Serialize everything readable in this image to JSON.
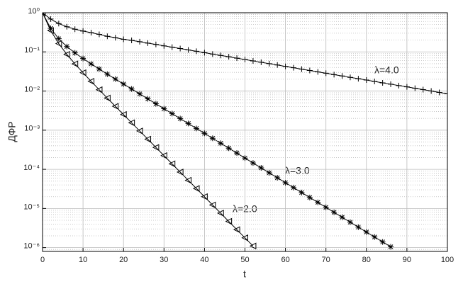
{
  "chart_data": {
    "type": "line",
    "xlabel": "t",
    "ylabel": "ДФР",
    "log_y": true,
    "grid": true,
    "xlim": [
      0,
      100
    ],
    "xticks": [
      0,
      10,
      20,
      30,
      40,
      50,
      60,
      70,
      80,
      90,
      100
    ],
    "ylim": [
      8e-07,
      1
    ],
    "yticks": [
      {
        "value": 1,
        "label": "10⁰"
      },
      {
        "value": 0.1,
        "label": "10⁻¹"
      },
      {
        "value": 0.01,
        "label": "10⁻²"
      },
      {
        "value": 0.001,
        "label": "10⁻³"
      },
      {
        "value": 0.0001,
        "label": "10⁻⁴"
      },
      {
        "value": 1e-05,
        "label": "10⁻⁵"
      },
      {
        "value": 1e-06,
        "label": "10⁻⁶"
      }
    ],
    "series": [
      {
        "name": "λ=4.0",
        "color": "#000000",
        "marker": "+",
        "x": [
          0,
          2,
          4,
          6,
          8,
          10,
          12,
          14,
          16,
          18,
          20,
          22,
          24,
          26,
          28,
          30,
          32,
          34,
          36,
          38,
          40,
          42,
          44,
          46,
          48,
          50,
          52,
          54,
          56,
          58,
          60,
          62,
          64,
          66,
          68,
          70,
          72,
          74,
          76,
          78,
          80,
          82,
          84,
          86,
          88,
          90,
          92,
          94,
          96,
          98,
          100
        ],
        "values": [
          1,
          0.69,
          0.53,
          0.44,
          0.38,
          0.34,
          0.31,
          0.28,
          0.25,
          0.23,
          0.21,
          0.197,
          0.182,
          0.168,
          0.155,
          0.143,
          0.132,
          0.122,
          0.112,
          0.104,
          0.0955,
          0.0881,
          0.0813,
          0.075,
          0.0692,
          0.0638,
          0.0589,
          0.0543,
          0.0501,
          0.0462,
          0.0427,
          0.0394,
          0.0363,
          0.0335,
          0.0309,
          0.0285,
          0.0263,
          0.0243,
          0.0224,
          0.0207,
          0.0191,
          0.0176,
          0.0162,
          0.015,
          0.0138,
          0.0128,
          0.0118,
          0.0109,
          0.01,
          0.0092,
          0.0085
        ]
      },
      {
        "name": "λ=3.0",
        "color": "#000000",
        "marker": "*",
        "x": [
          0,
          2,
          4,
          6,
          8,
          10,
          12,
          14,
          16,
          18,
          20,
          22,
          24,
          26,
          28,
          30,
          32,
          34,
          36,
          38,
          40,
          42,
          44,
          46,
          48,
          50,
          52,
          54,
          56,
          58,
          60,
          62,
          64,
          66,
          68,
          70,
          72,
          74,
          76,
          78,
          80,
          82,
          84,
          86
        ],
        "values": [
          1,
          0.4,
          0.217,
          0.137,
          0.0944,
          0.0676,
          0.0494,
          0.0366,
          0.027,
          0.0202,
          0.0151,
          0.0113,
          0.00846,
          0.00633,
          0.00473,
          0.00354,
          0.00265,
          0.00198,
          0.00148,
          0.00111,
          0.00083,
          0.000621,
          0.000464,
          0.000347,
          0.00026,
          0.000194,
          0.000145,
          0.000109,
          8.14e-05,
          6.09e-05,
          4.55e-05,
          3.41e-05,
          2.55e-05,
          1.91e-05,
          1.43e-05,
          1.07e-05,
          7.98e-06,
          5.97e-06,
          4.47e-06,
          3.34e-06,
          2.5e-06,
          1.87e-06,
          1.4e-06,
          1.05e-06
        ]
      },
      {
        "name": "λ=2.0",
        "color": "#000000",
        "marker": "<",
        "x": [
          0,
          2,
          4,
          6,
          8,
          10,
          12,
          14,
          16,
          18,
          20,
          22,
          24,
          26,
          28,
          30,
          32,
          34,
          36,
          38,
          40,
          42,
          44,
          46,
          48,
          50,
          52
        ],
        "values": [
          1,
          0.352,
          0.163,
          0.0865,
          0.0494,
          0.0294,
          0.0177,
          0.0108,
          0.00661,
          0.00407,
          0.00251,
          0.00155,
          0.000955,
          0.000589,
          0.000363,
          0.000224,
          0.000138,
          8.51e-05,
          5.25e-05,
          3.24e-05,
          2e-05,
          1.23e-05,
          7.59e-06,
          4.68e-06,
          2.88e-06,
          1.78e-06,
          1.1e-06
        ]
      }
    ]
  }
}
